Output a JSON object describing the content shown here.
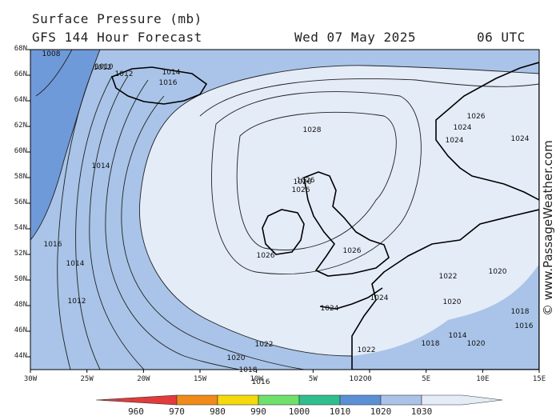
{
  "header": {
    "title": "Surface Pressure (mb)",
    "subtitle": "GFS 144 Hour Forecast",
    "date": "Wed 07 May 2025",
    "time": "06 UTC"
  },
  "watermark": "© www.PassageWeather.com",
  "lat_ticks": [
    "68N",
    "66N",
    "64N",
    "62N",
    "60N",
    "58N",
    "56N",
    "54N",
    "52N",
    "50N",
    "48N",
    "46N",
    "44N"
  ],
  "lon_ticks": [
    "30W",
    "25W",
    "20W",
    "15W",
    "10W",
    "5W",
    "0",
    "5E",
    "10E",
    "15E"
  ],
  "colorbar": {
    "labels": [
      "960",
      "970",
      "980",
      "990",
      "1000",
      "1010",
      "1020",
      "1030"
    ],
    "colors": [
      "#e23b3b",
      "#f08a1a",
      "#f5d90a",
      "#6fe06a",
      "#2fbf8f",
      "#5b8fd6",
      "#a9c4e8",
      "#e4ecf8"
    ]
  },
  "isobar_labels": [
    {
      "t": "1028"
    },
    {
      "t": "1026"
    },
    {
      "t": "1026"
    },
    {
      "t": "1026"
    },
    {
      "t": "1026"
    },
    {
      "t": "1026"
    },
    {
      "t": "1024"
    },
    {
      "t": "1024"
    },
    {
      "t": "1024"
    },
    {
      "t": "1024"
    },
    {
      "t": "1022"
    },
    {
      "t": "1022"
    },
    {
      "t": "1022"
    },
    {
      "t": "1020"
    },
    {
      "t": "1020"
    },
    {
      "t": "1020"
    },
    {
      "t": "1020"
    },
    {
      "t": "1018"
    },
    {
      "t": "1018"
    },
    {
      "t": "1016"
    },
    {
      "t": "1016"
    },
    {
      "t": "1016"
    },
    {
      "t": "1014"
    },
    {
      "t": "1014"
    },
    {
      "t": "1014"
    },
    {
      "t": "1012"
    },
    {
      "t": "1012"
    },
    {
      "t": "1010"
    },
    {
      "t": "1008"
    },
    {
      "t": "1026"
    },
    {
      "t": "1024"
    },
    {
      "t": "1020"
    },
    {
      "t": "1018"
    },
    {
      "t": "1016"
    },
    {
      "t": "1014"
    },
    {
      "t": "1012"
    }
  ]
}
